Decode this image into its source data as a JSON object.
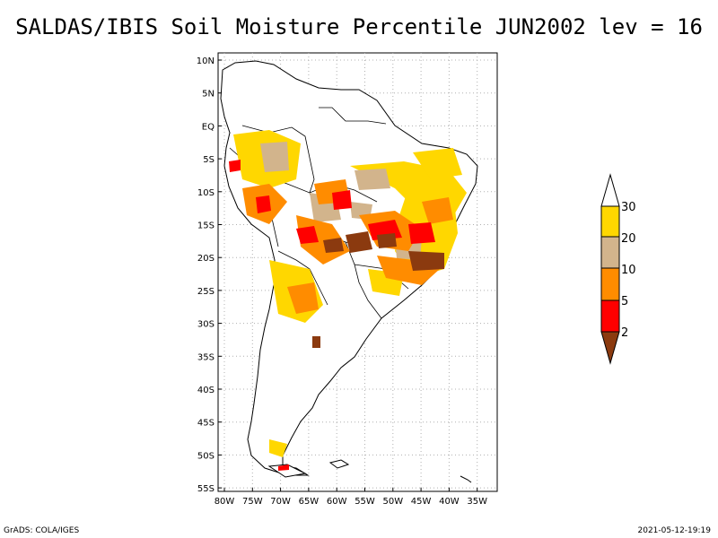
{
  "title": "SALDAS/IBIS Soil Moisture Percentile JUN2002 lev = 16",
  "map": {
    "lon_range": [
      -80,
      -31
    ],
    "lat_range": [
      -56,
      12
    ],
    "lat_ticks": [
      "10N",
      "5N",
      "EQ",
      "5S",
      "10S",
      "15S",
      "20S",
      "25S",
      "30S",
      "35S",
      "40S",
      "45S",
      "50S",
      "55S"
    ],
    "lon_ticks": [
      "80W",
      "75W",
      "70W",
      "65W",
      "60W",
      "55W",
      "50W",
      "45W",
      "40W",
      "35W"
    ],
    "gridlines": true
  },
  "colorbar": {
    "labels": [
      "2",
      "5",
      "10",
      "20",
      "30"
    ],
    "colors": {
      "below_2": "#8b3a0f",
      "2_to_5": "#ff0000",
      "5_to_10": "#ff8c00",
      "10_to_20": "#d2b48c",
      "20_to_30": "#ffd700",
      "above_30": "#ffffff"
    }
  },
  "footer": {
    "left": "GrADS: COLA/IGES",
    "right": "2021-05-12-19:19"
  }
}
